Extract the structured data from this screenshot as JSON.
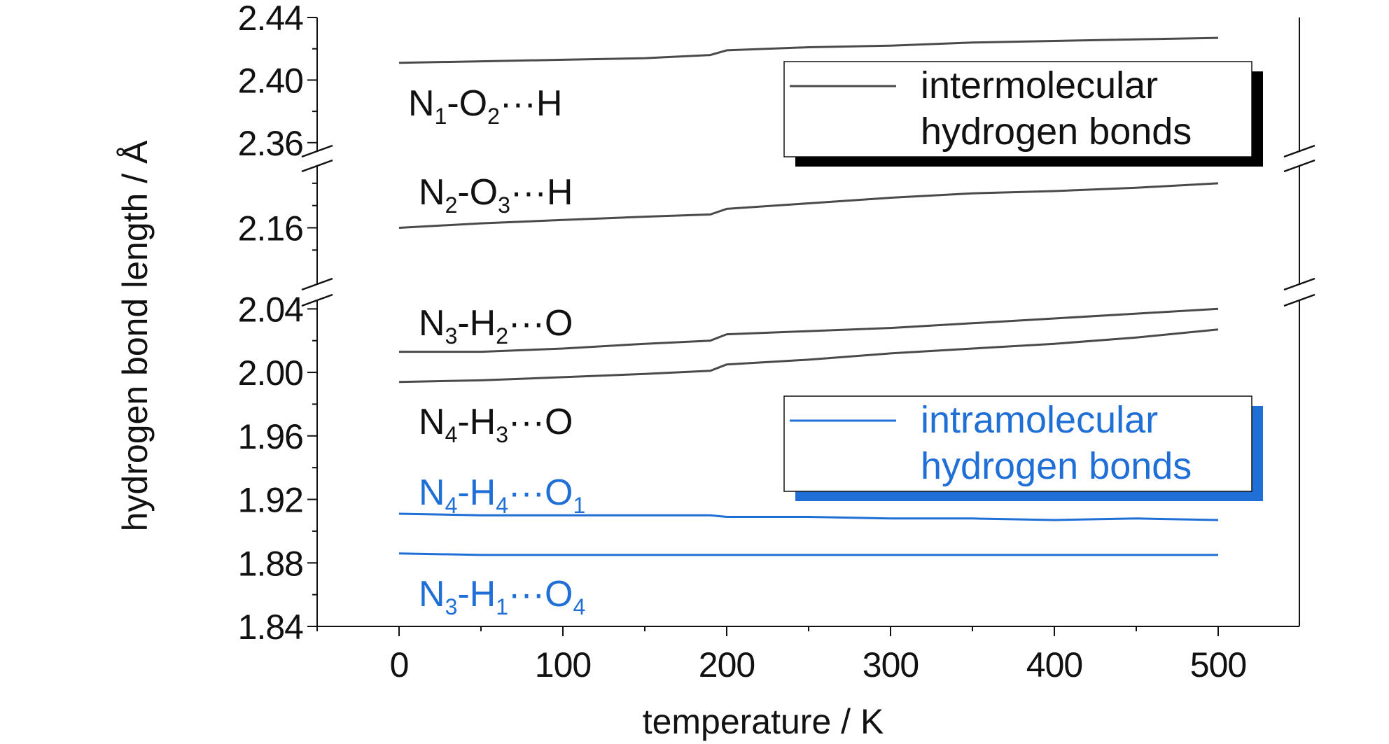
{
  "chart_data": {
    "type": "line",
    "xlabel": "temperature / K",
    "ylabel": "hydrogen bond length / Å",
    "xlim": [
      -50,
      550
    ],
    "x_ticks": [
      "0",
      "100",
      "200",
      "300",
      "400",
      "500"
    ],
    "y_axis_broken": true,
    "y_ticks": [
      "1.84",
      "1.88",
      "1.92",
      "1.96",
      "2.00",
      "2.04",
      "2.16",
      "2.36",
      "2.40",
      "2.44"
    ],
    "y_segments": [
      {
        "range": [
          1.84,
          2.045
        ]
      },
      {
        "range": [
          2.11,
          2.215
        ]
      },
      {
        "range": [
          2.355,
          2.44
        ]
      }
    ],
    "x": [
      0,
      50,
      100,
      150,
      190,
      200,
      250,
      300,
      350,
      400,
      450,
      500
    ],
    "series": [
      {
        "label": {
          "base": "N",
          "s1": "1",
          "mid": "-O",
          "s2": "2",
          "tail": "···H",
          "s3": ""
        },
        "group": "intermolecular",
        "values": [
          2.411,
          2.412,
          2.413,
          2.414,
          2.416,
          2.419,
          2.421,
          2.422,
          2.424,
          2.425,
          2.426,
          2.427
        ]
      },
      {
        "label": {
          "base": "N",
          "s1": "2",
          "mid": "-O",
          "s2": "3",
          "tail": "···H",
          "s3": ""
        },
        "group": "intermolecular",
        "values": [
          2.16,
          2.164,
          2.167,
          2.17,
          2.172,
          2.177,
          2.182,
          2.187,
          2.191,
          2.193,
          2.196,
          2.2
        ]
      },
      {
        "label": {
          "base": "N",
          "s1": "3",
          "mid": "-H",
          "s2": "2",
          "tail": "···O",
          "s3": ""
        },
        "group": "intermolecular",
        "values": [
          2.013,
          2.013,
          2.015,
          2.018,
          2.02,
          2.024,
          2.026,
          2.028,
          2.031,
          2.034,
          2.037,
          2.04
        ]
      },
      {
        "label": {
          "base": "N",
          "s1": "4",
          "mid": "-H",
          "s2": "3",
          "tail": "···O",
          "s3": ""
        },
        "group": "intermolecular",
        "values": [
          1.994,
          1.995,
          1.997,
          1.999,
          2.001,
          2.005,
          2.008,
          2.012,
          2.015,
          2.018,
          2.022,
          2.027
        ]
      },
      {
        "label": {
          "base": "N",
          "s1": "4",
          "mid": "-H",
          "s2": "4",
          "tail": "···O",
          "s3": "1"
        },
        "group": "intramolecular",
        "values": [
          1.911,
          1.91,
          1.91,
          1.91,
          1.91,
          1.909,
          1.909,
          1.908,
          1.908,
          1.907,
          1.908,
          1.907
        ]
      },
      {
        "label": {
          "base": "N",
          "s1": "3",
          "mid": "-H",
          "s2": "1",
          "tail": "···O",
          "s3": "4"
        },
        "group": "intramolecular",
        "values": [
          1.886,
          1.885,
          1.885,
          1.885,
          1.885,
          1.885,
          1.885,
          1.885,
          1.885,
          1.885,
          1.885,
          1.885
        ]
      }
    ],
    "legend": [
      {
        "group": "intermolecular",
        "line1": "intermolecular",
        "line2": "hydrogen bonds",
        "color": "#4a4a4a",
        "shadow": "#000000"
      },
      {
        "group": "intramolecular",
        "line1": "intramolecular",
        "line2": "hydrogen bonds",
        "color": "#1f6fd6",
        "shadow": "#1f6fd6"
      }
    ],
    "colors": {
      "intermolecular": "#4a4a4a",
      "intramolecular": "#1f6fd6",
      "text": "#111111"
    }
  }
}
